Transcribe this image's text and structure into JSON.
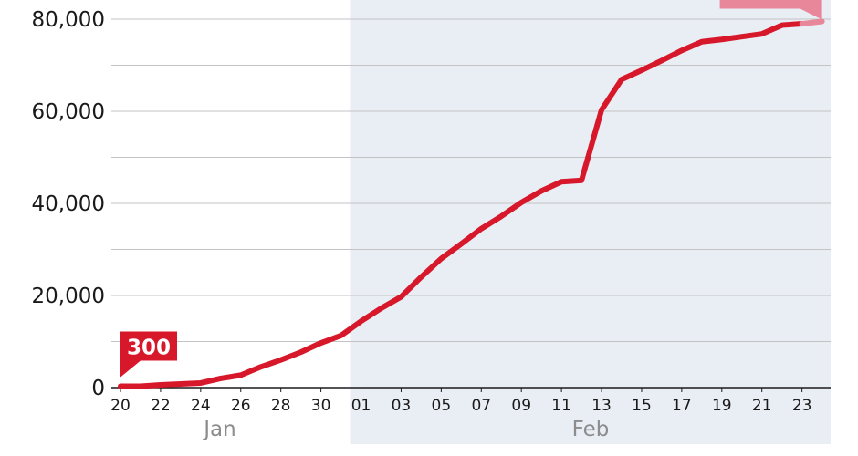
{
  "chart_data": {
    "type": "line",
    "x": [
      "2020-01-20",
      "2020-01-21",
      "2020-01-22",
      "2020-01-23",
      "2020-01-24",
      "2020-01-25",
      "2020-01-26",
      "2020-01-27",
      "2020-01-28",
      "2020-01-29",
      "2020-01-30",
      "2020-01-31",
      "2020-02-01",
      "2020-02-02",
      "2020-02-03",
      "2020-02-04",
      "2020-02-05",
      "2020-02-06",
      "2020-02-07",
      "2020-02-08",
      "2020-02-09",
      "2020-02-10",
      "2020-02-11",
      "2020-02-12",
      "2020-02-13",
      "2020-02-14",
      "2020-02-15",
      "2020-02-16",
      "2020-02-17",
      "2020-02-18",
      "2020-02-19",
      "2020-02-20",
      "2020-02-21",
      "2020-02-22",
      "2020-02-23",
      "2020-02-24"
    ],
    "series": [
      {
        "values": [
          300,
          300,
          600,
          800,
          1000,
          2000,
          2700,
          4500,
          6000,
          7700,
          9700,
          11300,
          14400,
          17200,
          19700,
          24000,
          28000,
          31200,
          34500,
          37200,
          40200,
          42700,
          44700,
          45000,
          60300,
          66900,
          68900,
          71000,
          73200,
          75100,
          75600,
          76200,
          76800,
          78700,
          79000,
          79500
        ],
        "color": "#d7172a"
      }
    ],
    "forecast_color": "#e8869a",
    "callout": {
      "text": "300",
      "color": "#d7172a"
    },
    "ylim": [
      0,
      80000
    ],
    "yticks": [
      "0",
      "20,000",
      "40,000",
      "60,000",
      "80,000"
    ],
    "xtick_labels": [
      "20",
      "22",
      "24",
      "26",
      "28",
      "30",
      "01",
      "03",
      "05",
      "07",
      "09",
      "11",
      "13",
      "15",
      "17",
      "19",
      "21",
      "23"
    ],
    "months": [
      "Jan",
      "Feb"
    ],
    "shaded_month": "Feb",
    "shade_color": "#e9eef5",
    "grid": true,
    "title": "",
    "xlabel": "",
    "ylabel": ""
  }
}
